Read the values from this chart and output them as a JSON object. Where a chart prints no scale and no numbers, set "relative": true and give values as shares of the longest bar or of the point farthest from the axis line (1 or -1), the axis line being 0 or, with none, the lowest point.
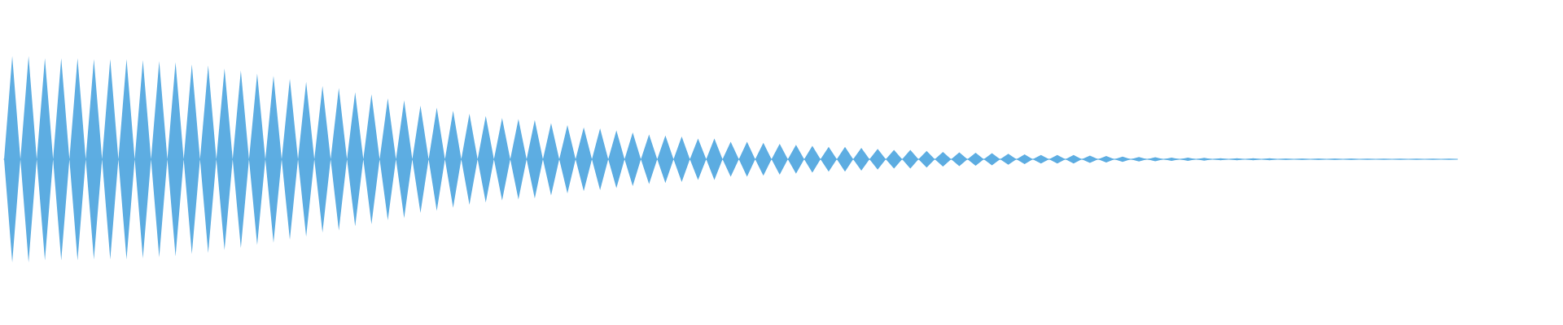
{
  "chart_data": {
    "type": "area",
    "relative": true,
    "grid": false,
    "legend": false,
    "tick_labels": false,
    "categories": [
      null,
      null,
      null,
      null,
      null,
      null,
      null,
      null,
      null,
      null,
      null,
      null,
      null,
      null,
      null,
      null,
      null,
      null,
      null,
      null,
      null,
      null,
      null,
      null,
      null,
      null,
      null,
      null,
      null,
      null,
      null,
      null,
      null,
      null,
      null,
      null,
      null,
      null,
      null,
      null,
      null,
      null,
      null,
      null,
      null,
      null,
      null,
      null,
      null,
      null,
      null,
      null,
      null,
      null,
      null,
      null,
      null,
      null,
      null,
      null,
      null,
      null,
      null,
      null,
      null,
      null,
      null,
      null,
      null,
      null,
      null,
      null,
      null,
      null,
      null,
      null,
      null,
      null,
      null,
      null,
      null,
      null,
      null,
      null,
      null,
      null,
      null,
      null,
      null,
      null,
      null,
      null,
      null,
      null,
      null,
      null,
      null,
      null,
      null,
      null,
      null,
      null,
      null,
      null,
      null,
      null,
      null,
      null,
      null,
      null,
      null,
      null,
      null,
      null,
      null,
      null,
      null,
      null,
      null,
      null,
      null,
      null,
      null,
      null,
      null,
      null,
      null,
      null,
      null,
      null,
      null,
      null,
      null,
      null,
      null,
      null,
      null,
      null,
      null,
      null,
      null,
      null,
      null,
      null,
      null,
      null,
      null,
      null,
      null,
      null,
      null,
      null,
      null,
      null,
      null,
      null,
      null,
      null,
      null,
      null,
      null,
      null,
      null,
      null,
      null,
      null,
      null,
      null,
      null,
      null,
      null,
      null,
      null,
      null,
      null,
      null,
      null,
      null,
      null
    ],
    "series": [
      {
        "color": "#5dade2",
        "values": [
          0,
          1.0,
          0,
          1.0,
          0,
          0.98,
          0,
          0.98,
          0,
          0.98,
          0,
          0.97,
          0,
          0.97,
          0,
          0.97,
          0,
          0.96,
          0,
          0.95,
          0,
          0.94,
          0,
          0.92,
          0,
          0.91,
          0,
          0.88,
          0,
          0.86,
          0,
          0.83,
          0,
          0.81,
          0,
          0.78,
          0,
          0.75,
          0,
          0.71,
          0,
          0.69,
          0,
          0.65,
          0,
          0.63,
          0,
          0.59,
          0,
          0.57,
          0,
          0.52,
          0,
          0.5,
          0,
          0.47,
          0,
          0.44,
          0,
          0.42,
          0,
          0.4,
          0,
          0.39,
          0,
          0.38,
          0,
          0.35,
          0,
          0.33,
          0,
          0.31,
          0,
          0.3,
          0,
          0.28,
          0,
          0.26,
          0,
          0.24,
          0,
          0.23,
          0,
          0.22,
          0,
          0.2,
          0,
          0.2,
          0,
          0.17,
          0,
          0.17,
          0,
          0.16,
          0,
          0.15,
          0,
          0.14,
          0,
          0.13,
          0,
          0.12,
          0,
          0.12,
          0,
          0.11,
          0,
          0.1,
          0,
          0.09,
          0,
          0.09,
          0,
          0.08,
          0,
          0.07,
          0,
          0.066,
          0,
          0.063,
          0,
          0.06,
          0,
          0.053,
          0,
          0.047,
          0,
          0.041,
          0,
          0.041,
          0,
          0.041,
          0,
          0.035,
          0,
          0.031,
          0,
          0.025,
          0,
          0.022,
          0,
          0.019,
          0,
          0.016,
          0,
          0.016,
          0,
          0.013,
          0,
          0.009,
          0,
          0.009,
          0,
          0.009,
          0,
          0.009,
          0,
          0.006,
          0,
          0.006,
          0,
          0.006,
          0,
          0.006,
          0,
          0.006,
          0,
          0.004,
          0,
          0.004,
          0,
          0.004,
          0,
          0.004,
          0,
          0.004,
          0,
          0.004,
          0
        ]
      },
      {
        "color": "#5cace1",
        "values": [
          0,
          -1.0,
          0,
          -1.0,
          0,
          -0.98,
          0,
          -0.98,
          0,
          -0.98,
          0,
          -0.97,
          0,
          -0.97,
          0,
          -0.97,
          0,
          -0.96,
          0,
          -0.95,
          0,
          -0.94,
          0,
          -0.92,
          0,
          -0.91,
          0,
          -0.88,
          0,
          -0.86,
          0,
          -0.83,
          0,
          -0.81,
          0,
          -0.78,
          0,
          -0.75,
          0,
          -0.71,
          0,
          -0.69,
          0,
          -0.65,
          0,
          -0.63,
          0,
          -0.59,
          0,
          -0.57,
          0,
          -0.52,
          0,
          -0.5,
          0,
          -0.47,
          0,
          -0.44,
          0,
          -0.42,
          0,
          -0.4,
          0,
          -0.39,
          0,
          -0.38,
          0,
          -0.35,
          0,
          -0.33,
          0,
          -0.31,
          0,
          -0.3,
          0,
          -0.28,
          0,
          -0.26,
          0,
          -0.24,
          0,
          -0.23,
          0,
          -0.22,
          0,
          -0.2,
          0,
          -0.2,
          0,
          -0.17,
          0,
          -0.17,
          0,
          -0.16,
          0,
          -0.15,
          0,
          -0.14,
          0,
          -0.13,
          0,
          -0.12,
          0,
          -0.12,
          0,
          -0.11,
          0,
          -0.1,
          0,
          -0.09,
          0,
          -0.09,
          0,
          -0.08,
          0,
          -0.07,
          0,
          -0.066,
          0,
          -0.063,
          0,
          -0.06,
          0,
          -0.053,
          0,
          -0.047,
          0,
          -0.041,
          0,
          -0.041,
          0,
          -0.041,
          0,
          -0.035,
          0,
          -0.031,
          0,
          -0.025,
          0,
          -0.022,
          0,
          -0.019,
          0,
          -0.016,
          0,
          -0.016,
          0,
          -0.013,
          0,
          -0.009,
          0,
          -0.009,
          0,
          -0.009,
          0,
          -0.009,
          0,
          -0.006,
          0,
          -0.006,
          0,
          -0.006,
          0,
          -0.006,
          0,
          -0.006,
          0,
          -0.004,
          0,
          -0.004,
          0,
          -0.004,
          0,
          -0.004,
          0,
          -0.004,
          0,
          -0.004,
          0
        ]
      }
    ]
  }
}
